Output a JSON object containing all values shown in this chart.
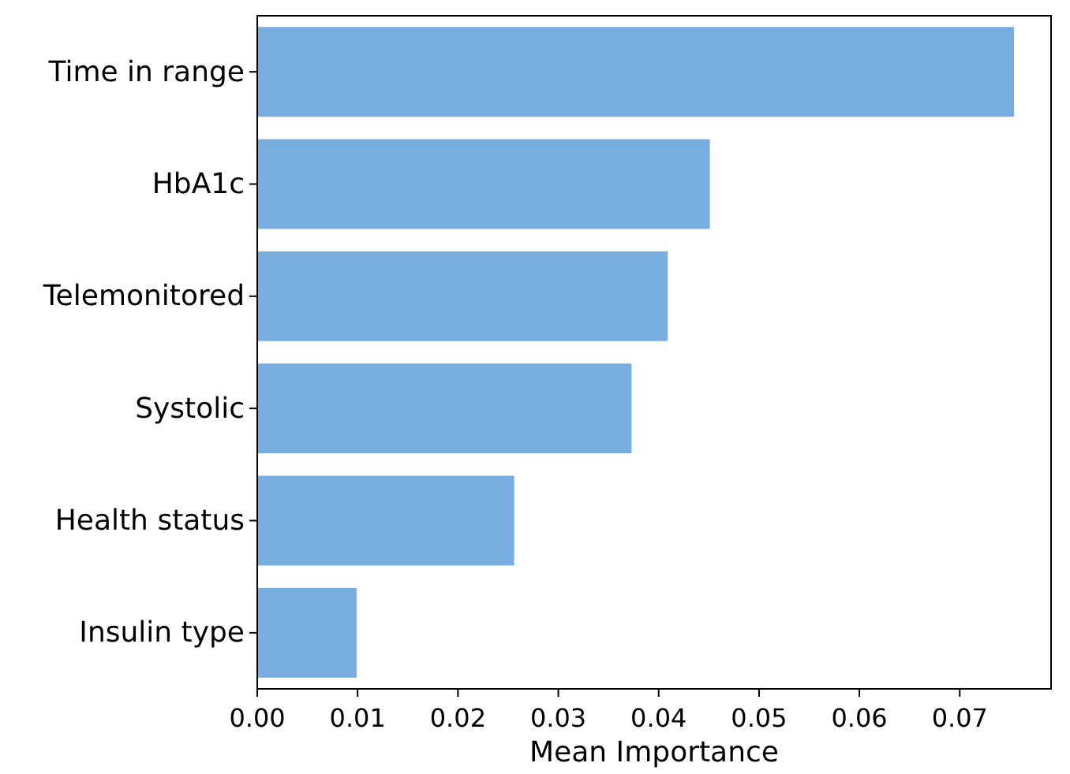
{
  "chart_data": {
    "type": "bar",
    "orientation": "horizontal",
    "xlabel": "Mean Importance",
    "categories": [
      "Time in range",
      "HbA1c",
      "Telemonitored",
      "Systolic",
      "Health status",
      "Insulin type"
    ],
    "values": [
      0.0754,
      0.0451,
      0.0409,
      0.0373,
      0.0256,
      0.0099
    ],
    "color": "#77addf",
    "xlim": [
      0,
      0.0791
    ],
    "xticks": [
      {
        "value": 0,
        "label": "0.00"
      },
      {
        "value": 0.01,
        "label": "0.01"
      },
      {
        "value": 0.02,
        "label": "0.02"
      },
      {
        "value": 0.03,
        "label": "0.03"
      },
      {
        "value": 0.04,
        "label": "0.04"
      },
      {
        "value": 0.05,
        "label": "0.05"
      },
      {
        "value": 0.06,
        "label": "0.06"
      },
      {
        "value": 0.07,
        "label": "0.07"
      }
    ],
    "grid": false
  }
}
